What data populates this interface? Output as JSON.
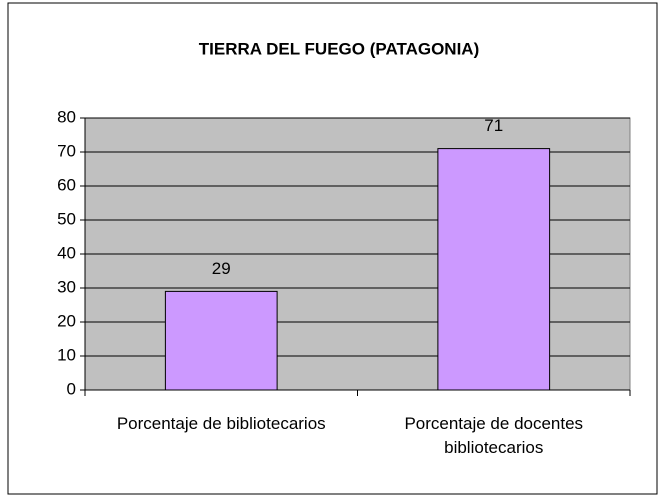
{
  "chart_data": {
    "type": "bar",
    "title": "TIERRA DEL FUEGO (PATAGONIA)",
    "categories": [
      "Porcentaje de bibliotecarios",
      "Porcentaje de docentes bibliotecarios"
    ],
    "values": [
      29,
      71
    ],
    "color": "#cc99ff",
    "ylim": [
      0,
      80
    ],
    "yticks": [
      0,
      10,
      20,
      30,
      40,
      50,
      60,
      70,
      80
    ],
    "grid": true
  }
}
